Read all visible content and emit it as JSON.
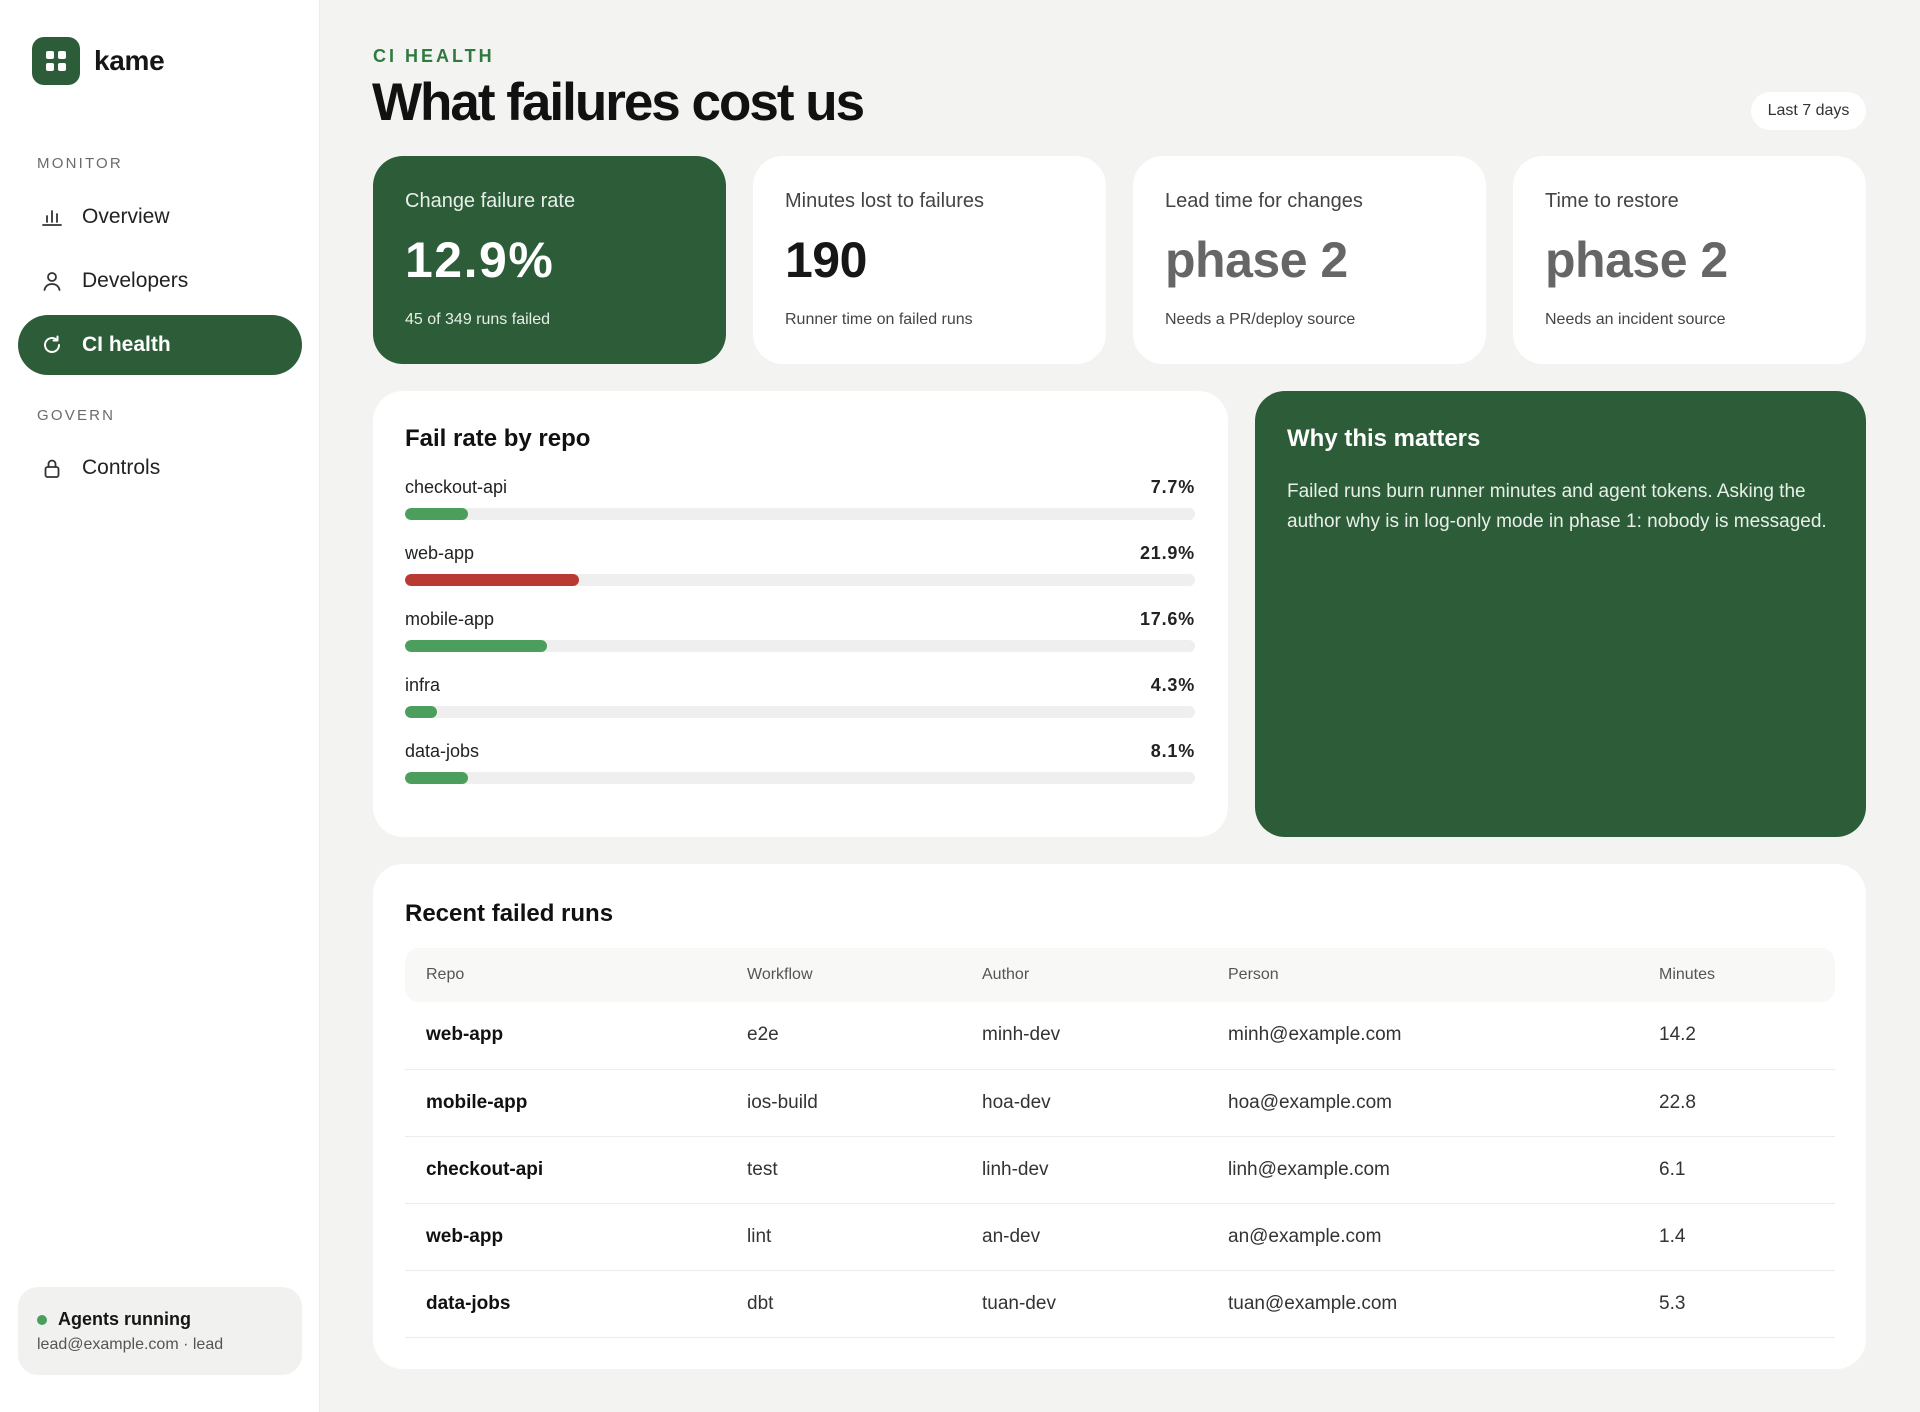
{
  "brand": {
    "name": "kame"
  },
  "sidebar": {
    "sections": [
      {
        "label": "MONITOR",
        "items": [
          {
            "label": "Overview",
            "icon": "bar-chart-icon",
            "active": false
          },
          {
            "label": "Developers",
            "icon": "person-icon",
            "active": false
          },
          {
            "label": "CI health",
            "icon": "refresh-icon",
            "active": true
          }
        ]
      },
      {
        "label": "GOVERN",
        "items": [
          {
            "label": "Controls",
            "icon": "lock-icon",
            "active": false
          }
        ]
      }
    ],
    "status": {
      "title": "Agents running",
      "subtitle": "lead@example.com · lead",
      "dot_color": "#4c9e5d"
    }
  },
  "header": {
    "eyebrow": "CI HEALTH",
    "title": "What failures cost us",
    "range": "Last 7 days"
  },
  "kpis": [
    {
      "label": "Change failure rate",
      "value": "12.9%",
      "sub": "45 of 349 runs failed"
    },
    {
      "label": "Minutes lost to failures",
      "value": "190",
      "sub": "Runner time on failed runs"
    },
    {
      "label": "Lead time for changes",
      "value": "phase 2",
      "sub": "Needs a PR/deploy source"
    },
    {
      "label": "Time to restore",
      "value": "phase 2",
      "sub": "Needs an incident source"
    }
  ],
  "fail_rate": {
    "title": "Fail rate by repo",
    "repos": [
      {
        "name": "checkout-api",
        "pct": "7.7%",
        "fraction": 0.08,
        "status": "ok"
      },
      {
        "name": "web-app",
        "pct": "21.9%",
        "fraction": 0.22,
        "status": "bad"
      },
      {
        "name": "mobile-app",
        "pct": "17.6%",
        "fraction": 0.18,
        "status": "ok"
      },
      {
        "name": "infra",
        "pct": "4.3%",
        "fraction": 0.04,
        "status": "ok"
      },
      {
        "name": "data-jobs",
        "pct": "8.1%",
        "fraction": 0.08,
        "status": "ok"
      }
    ],
    "colors": {
      "ok": "#4c9e5d",
      "bad": "#b83a33"
    }
  },
  "why": {
    "title": "Why this matters",
    "text": "Failed runs burn runner minutes and agent tokens. Asking the author why is in log-only mode in phase 1: nobody is messaged."
  },
  "runs": {
    "title": "Recent failed runs",
    "columns": [
      "Repo",
      "Workflow",
      "Author",
      "Person",
      "Minutes"
    ],
    "rows": [
      [
        "web-app",
        "e2e",
        "minh-dev",
        "minh@example.com",
        "14.2"
      ],
      [
        "mobile-app",
        "ios-build",
        "hoa-dev",
        "hoa@example.com",
        "22.8"
      ],
      [
        "checkout-api",
        "test",
        "linh-dev",
        "linh@example.com",
        "6.1"
      ],
      [
        "web-app",
        "lint",
        "an-dev",
        "an@example.com",
        "1.4"
      ],
      [
        "data-jobs",
        "dbt",
        "tuan-dev",
        "tuan@example.com",
        "5.3"
      ]
    ]
  },
  "colors": {
    "accent": "#2c5d38",
    "accent_text": "#2f7a3f",
    "background": "#f3f3f2"
  }
}
